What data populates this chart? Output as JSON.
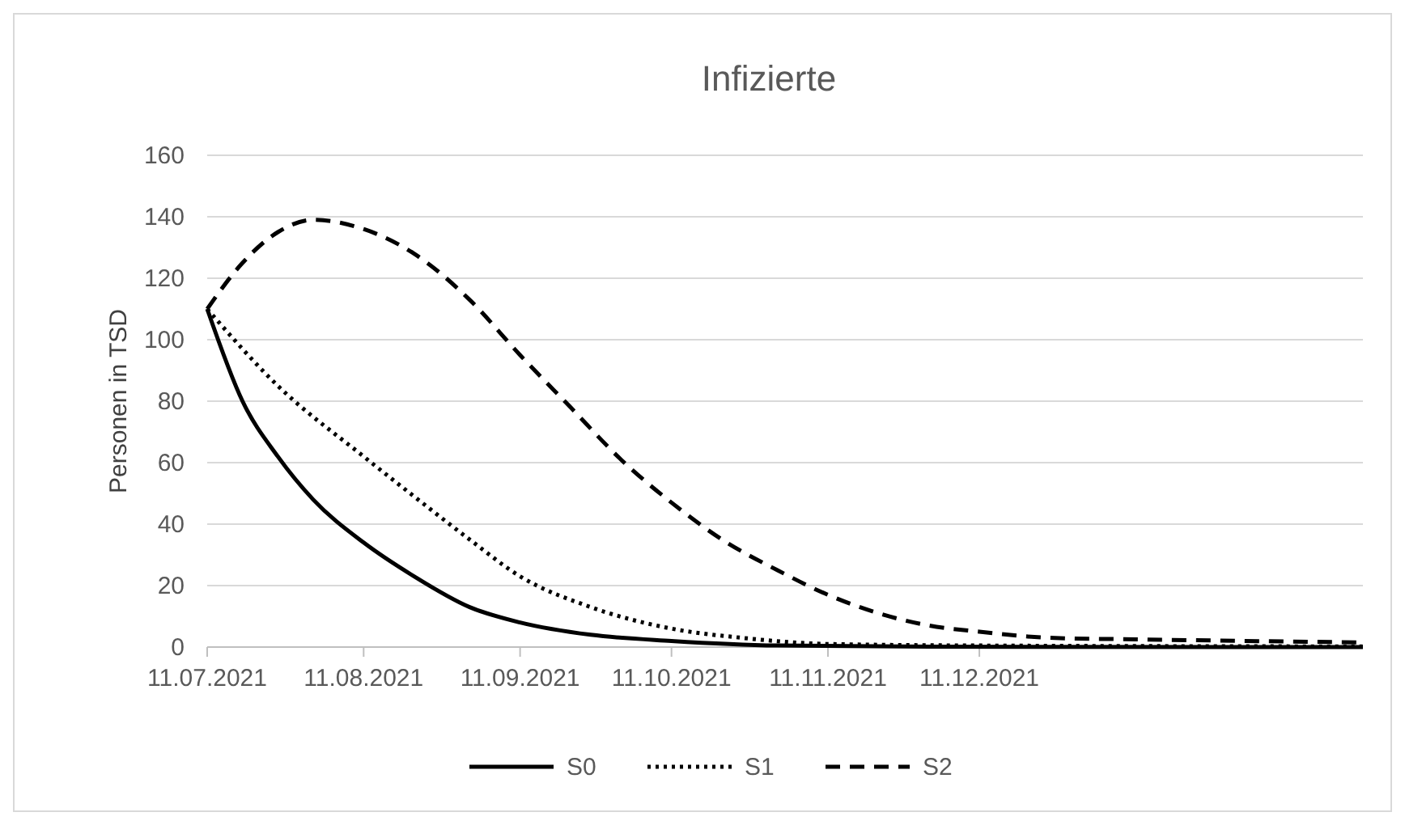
{
  "chart_data": {
    "type": "line",
    "title": "Infizierte",
    "ylabel": "Personen in TSD",
    "xlim": [
      "2021-07-11",
      "2022-02-25"
    ],
    "xticks": [
      {
        "value": "2021-07-11",
        "label": "11.07.2021"
      },
      {
        "value": "2021-08-11",
        "label": "11.08.2021"
      },
      {
        "value": "2021-09-11",
        "label": "11.09.2021"
      },
      {
        "value": "2021-10-11",
        "label": "11.10.2021"
      },
      {
        "value": "2021-11-11",
        "label": "11.11.2021"
      },
      {
        "value": "2021-12-11",
        "label": "11.12.2021"
      }
    ],
    "ylim": [
      0,
      160
    ],
    "yticks": [
      0,
      20,
      40,
      60,
      80,
      100,
      120,
      140,
      160
    ],
    "grid": "y",
    "legend": "bottom",
    "marker": "none",
    "series": [
      {
        "name": "S0",
        "color": "#000000",
        "line_style": "solid",
        "x": [
          "2021-07-11",
          "2021-07-18",
          "2021-07-25",
          "2021-08-01",
          "2021-08-11",
          "2021-08-21",
          "2021-09-01",
          "2021-09-11",
          "2021-09-25",
          "2021-10-11",
          "2021-11-01",
          "2021-12-01",
          "2022-02-25"
        ],
        "values": [
          110,
          80,
          62,
          48,
          34,
          23,
          13,
          8,
          4,
          2,
          0.5,
          0.1,
          0
        ]
      },
      {
        "name": "S1",
        "color": "#000000",
        "line_style": "dotted",
        "x": [
          "2021-07-11",
          "2021-07-25",
          "2021-08-11",
          "2021-08-21",
          "2021-09-01",
          "2021-09-11",
          "2021-09-25",
          "2021-10-11",
          "2021-10-25",
          "2021-11-11",
          "2021-12-11",
          "2022-02-25"
        ],
        "values": [
          110,
          85,
          62,
          49,
          35,
          23,
          13,
          6,
          3,
          1,
          0.5,
          0.2
        ]
      },
      {
        "name": "S2",
        "color": "#000000",
        "line_style": "dashed",
        "x": [
          "2021-07-11",
          "2021-07-18",
          "2021-07-25",
          "2021-08-01",
          "2021-08-11",
          "2021-08-21",
          "2021-09-01",
          "2021-09-11",
          "2021-09-21",
          "2021-10-01",
          "2021-10-11",
          "2021-10-21",
          "2021-11-01",
          "2021-11-11",
          "2021-11-21",
          "2021-12-01",
          "2021-12-11",
          "2021-12-25",
          "2022-01-11",
          "2022-02-01",
          "2022-02-25"
        ],
        "values": [
          110,
          125,
          135,
          139,
          136,
          128,
          113,
          95,
          78,
          61,
          47,
          35,
          25,
          17,
          11,
          7,
          5,
          3,
          2.5,
          2,
          1.5
        ]
      }
    ]
  }
}
